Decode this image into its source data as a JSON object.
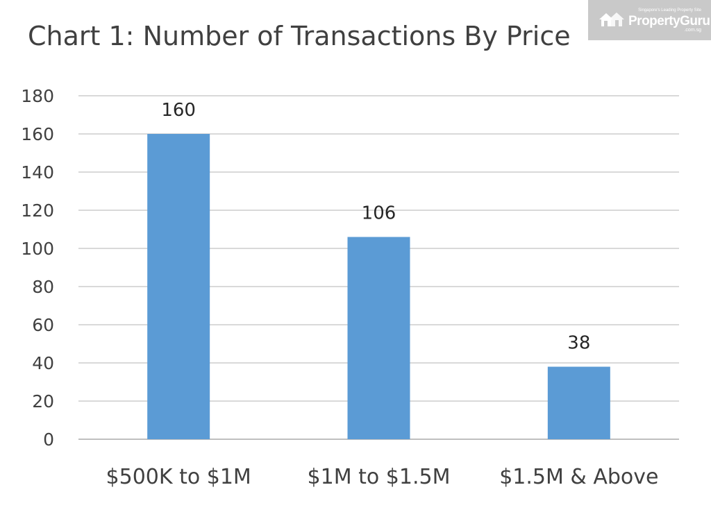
{
  "title": "Chart 1: Number of Transactions By Price",
  "watermark": {
    "tagline": "Singapore's Leading Property Site",
    "brand": "PropertyGuru",
    "sub": ".com.sg"
  },
  "colors": {
    "bar": "#5b9bd5",
    "grid": "#d9d9d9",
    "text": "#404040",
    "watermark_bg": "#c9c9c9"
  },
  "chart_data": {
    "type": "bar",
    "title": "Chart 1: Number of Transactions By Price",
    "categories": [
      "$500K to $1M",
      "$1M to $1.5M",
      "$1.5M & Above"
    ],
    "values": [
      160,
      106,
      38
    ],
    "data_labels": [
      "160",
      "106",
      "38"
    ],
    "yticks": [
      0,
      20,
      40,
      60,
      80,
      100,
      120,
      140,
      160,
      180
    ],
    "ylim": [
      0,
      180
    ],
    "xlabel": "",
    "ylabel": "",
    "grid": true,
    "legend": "none"
  }
}
